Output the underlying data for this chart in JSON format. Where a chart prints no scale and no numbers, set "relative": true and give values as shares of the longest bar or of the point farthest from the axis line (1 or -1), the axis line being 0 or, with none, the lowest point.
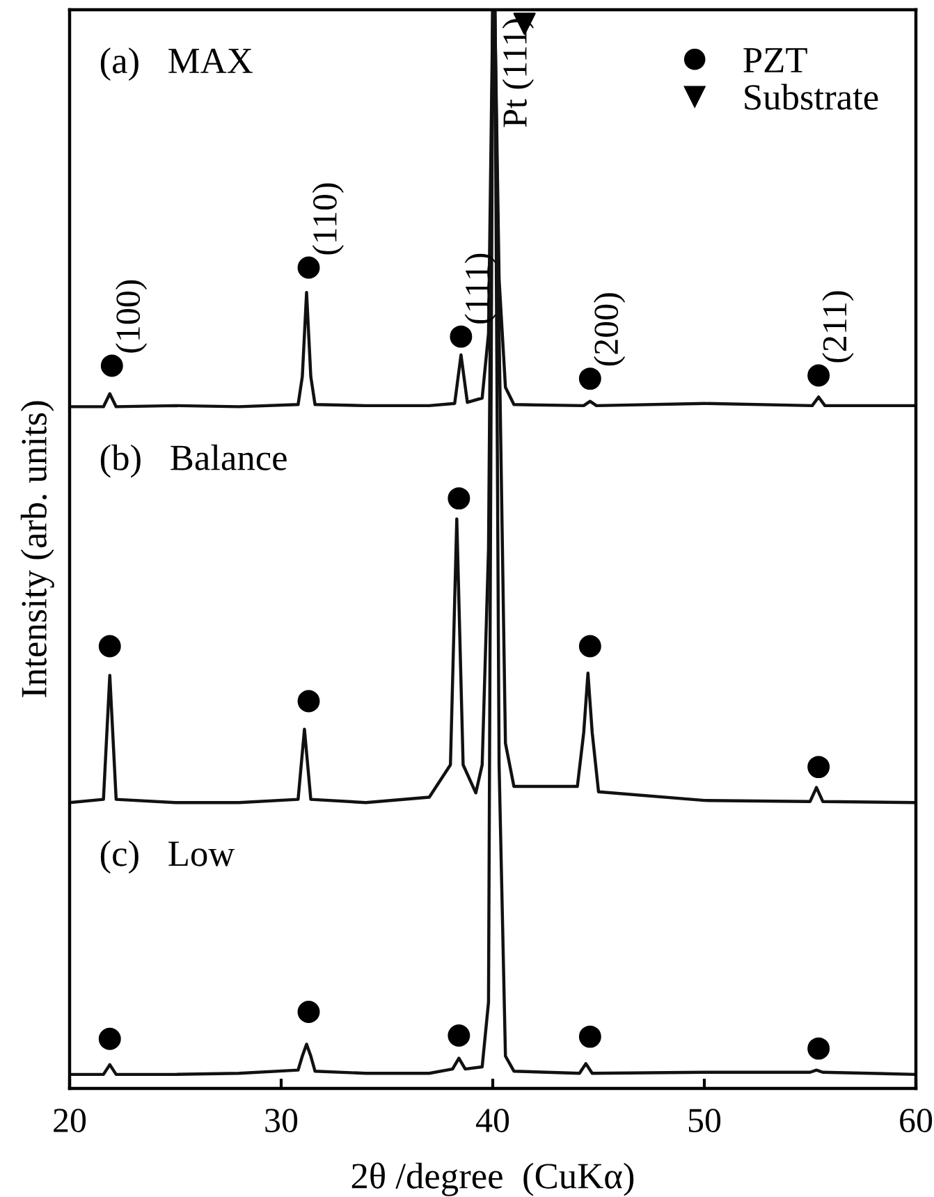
{
  "chart_data": {
    "type": "line",
    "relative": true,
    "xlabel": "2θ /degree  (CuKα)",
    "ylabel": "Intensity (arb. units)",
    "xlim": [
      20,
      60
    ],
    "xticks": [
      20,
      30,
      40,
      50,
      60
    ],
    "tick_labels": "x",
    "legend": "top right",
    "grid": false,
    "marker": "none",
    "line_style": "solid",
    "series": [
      {
        "color": "#111111",
        "x": [
          20,
          21.6,
          21.9,
          22.2,
          25,
          28,
          30.8,
          31.0,
          31.2,
          31.4,
          31.6,
          34,
          37,
          38.2,
          38.5,
          38.8,
          39.5,
          39.8,
          40.0,
          40.1,
          40.3,
          40.6,
          41,
          44.3,
          44.6,
          44.9,
          50,
          55.1,
          55.4,
          55.7,
          60
        ],
        "values": [
          0.632,
          0.632,
          0.644,
          0.632,
          0.633,
          0.632,
          0.634,
          0.66,
          0.738,
          0.66,
          0.634,
          0.633,
          0.633,
          0.635,
          0.68,
          0.636,
          0.64,
          0.7,
          1,
          1,
          0.75,
          0.65,
          0.634,
          0.633,
          0.637,
          0.633,
          0.635,
          0.633,
          0.641,
          0.633,
          0.633
        ]
      },
      {
        "color": "#111111",
        "x": [
          20,
          21.6,
          21.9,
          22.2,
          25,
          28,
          30.8,
          31.1,
          31.4,
          34,
          37,
          38.0,
          38.3,
          38.6,
          39.2,
          39.5,
          39.8,
          40.0,
          40.1,
          40.3,
          40.6,
          41,
          44.0,
          44.3,
          44.5,
          44.7,
          45.0,
          50,
          55.0,
          55.3,
          55.6,
          60
        ],
        "values": [
          0.265,
          0.268,
          0.383,
          0.268,
          0.265,
          0.265,
          0.268,
          0.333,
          0.268,
          0.265,
          0.27,
          0.3,
          0.528,
          0.3,
          0.274,
          0.3,
          0.5,
          1,
          1,
          0.7,
          0.32,
          0.28,
          0.28,
          0.33,
          0.385,
          0.33,
          0.275,
          0.267,
          0.266,
          0.279,
          0.266,
          0.265
        ]
      },
      {
        "color": "#111111",
        "x": [
          20,
          21.6,
          21.9,
          22.2,
          25,
          28,
          30.8,
          31.0,
          31.2,
          31.4,
          31.6,
          34,
          37,
          38.1,
          38.4,
          38.7,
          39.5,
          39.8,
          40.0,
          40.1,
          40.3,
          40.6,
          41,
          44.1,
          44.4,
          44.7,
          50,
          55.0,
          55.3,
          55.6,
          60
        ],
        "values": [
          0.013,
          0.013,
          0.022,
          0.013,
          0.013,
          0.014,
          0.017,
          0.03,
          0.041,
          0.03,
          0.016,
          0.014,
          0.014,
          0.018,
          0.028,
          0.018,
          0.02,
          0.08,
          1,
          1,
          0.3,
          0.03,
          0.016,
          0.014,
          0.023,
          0.014,
          0.015,
          0.015,
          0.017,
          0.015,
          0.013
        ]
      },
      {
        "name": "PZT",
        "type": "scatter",
        "marker": "circle",
        "color": "#000000",
        "x": [
          22.0,
          31.3,
          38.5,
          44.6,
          55.4,
          21.9,
          31.3,
          38.4,
          44.6,
          55.4,
          21.9,
          31.3,
          38.4,
          44.6,
          55.4
        ],
        "values": [
          0.67,
          0.761,
          0.697,
          0.658,
          0.661,
          0.41,
          0.359,
          0.547,
          0.41,
          0.298,
          0.046,
          0.071,
          0.049,
          0.048,
          0.037
        ]
      },
      {
        "name": "Substrate",
        "type": "scatter",
        "marker": "triangle",
        "color": "#000000",
        "x": [
          41.5
        ],
        "values": [
          0.987
        ]
      }
    ],
    "annotations": [
      "(a)   MAX",
      "(b)   Balance",
      "(c)   Low",
      {
        "text": "(100)",
        "x": 22.0,
        "y": 0.67
      },
      {
        "text": "(110)",
        "x": 31.3,
        "y": 0.761
      },
      {
        "text": "(111)",
        "x": 38.5,
        "y": 0.697
      },
      {
        "text": "(200)",
        "x": 44.6,
        "y": 0.658
      },
      {
        "text": "(211)",
        "x": 55.4,
        "y": 0.661
      },
      {
        "text": "Pt (111)",
        "x": 40.1,
        "y": 1
      }
    ]
  }
}
